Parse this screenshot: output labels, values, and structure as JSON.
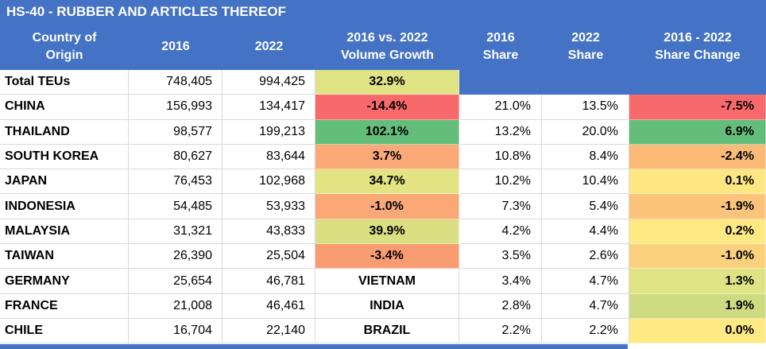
{
  "title": "HS-40 - RUBBER AND ARTICLES THEREOF",
  "colors": {
    "header_blue": "#4472C4",
    "grid_line": "#D9D9D9",
    "header_text": "#FFFFFF",
    "body_text": "#000000",
    "scale_red": "#F8696B",
    "scale_green": "#63BE7B",
    "scale_yellow": "#FEE984",
    "bottom_strip_blue": "#4472C4"
  },
  "header": {
    "cells": [
      {
        "line1": "Country of",
        "line2": "Origin"
      },
      {
        "line1": "2016",
        "line2": ""
      },
      {
        "line1": "2022",
        "line2": ""
      },
      {
        "line1": "2016 vs. 2022",
        "line2": "Volume Growth"
      },
      {
        "line1": "2016",
        "line2": "Share"
      },
      {
        "line1": "2022",
        "line2": "Share"
      },
      {
        "line1": "2016 - 2022",
        "line2": "Share Change"
      }
    ]
  },
  "rows": [
    {
      "country": "Total TEUs",
      "teu_2016": "748,405",
      "teu_2022": "994,425",
      "volume_growth": "32.9%",
      "volume_growth_bg": "#E0E383",
      "share_2016": "",
      "share_2022": "",
      "share_change": "",
      "share_cells_bg": "#4472C4",
      "share_change_bg": "#4472C4"
    },
    {
      "country": "CHINA",
      "teu_2016": "156,993",
      "teu_2022": "134,417",
      "volume_growth": "-14.4%",
      "volume_growth_bg": "#F8696B",
      "share_2016": "21.0%",
      "share_2022": "13.5%",
      "share_change": "-7.5%",
      "share_cells_bg": null,
      "share_change_bg": "#F8696B"
    },
    {
      "country": "THAILAND",
      "teu_2016": "98,577",
      "teu_2022": "199,213",
      "volume_growth": "102.1%",
      "volume_growth_bg": "#63BE7B",
      "share_2016": "13.2%",
      "share_2022": "20.0%",
      "share_change": "6.9%",
      "share_cells_bg": null,
      "share_change_bg": "#63BE7B"
    },
    {
      "country": "SOUTH KOREA",
      "teu_2016": "80,627",
      "teu_2022": "83,644",
      "volume_growth": "3.7%",
      "volume_growth_bg": "#FBA977",
      "share_2016": "10.8%",
      "share_2022": "8.4%",
      "share_change": "-2.4%",
      "share_cells_bg": null,
      "share_change_bg": "#FBBB76"
    },
    {
      "country": "JAPAN",
      "teu_2016": "76,453",
      "teu_2022": "102,968",
      "volume_growth": "34.7%",
      "volume_growth_bg": "#E2E483",
      "share_2016": "10.2%",
      "share_2022": "10.4%",
      "share_change": "0.1%",
      "share_cells_bg": null,
      "share_change_bg": "#FEE782"
    },
    {
      "country": "INDONESIA",
      "teu_2016": "54,485",
      "teu_2022": "53,933",
      "volume_growth": "-1.0%",
      "volume_growth_bg": "#FAA876",
      "share_2016": "7.3%",
      "share_2022": "5.4%",
      "share_change": "-1.9%",
      "share_cells_bg": null,
      "share_change_bg": "#FBC47A"
    },
    {
      "country": "MALAYSIA",
      "teu_2016": "31,321",
      "teu_2022": "43,833",
      "volume_growth": "39.9%",
      "volume_growth_bg": "#DAE082",
      "share_2016": "4.2%",
      "share_2022": "4.4%",
      "share_change": "0.2%",
      "share_cells_bg": null,
      "share_change_bg": "#FEE983"
    },
    {
      "country": "TAIWAN",
      "teu_2016": "26,390",
      "teu_2022": "25,504",
      "volume_growth": "-3.4%",
      "volume_growth_bg": "#F99C72",
      "share_2016": "3.5%",
      "share_2022": "2.6%",
      "share_change": "-1.0%",
      "share_cells_bg": null,
      "share_change_bg": "#FCD17D"
    },
    {
      "country": "GERMANY",
      "teu_2016": "25,654",
      "teu_2022": "46,781",
      "volume_growth": "VIETNAM",
      "volume_growth_bg": null,
      "share_2016": "3.4%",
      "share_2022": "4.7%",
      "share_change": "1.3%",
      "share_cells_bg": null,
      "share_change_bg": "#DFE383"
    },
    {
      "country": "FRANCE",
      "teu_2016": "21,008",
      "teu_2022": "46,461",
      "volume_growth": "INDIA",
      "volume_growth_bg": null,
      "share_2016": "2.8%",
      "share_2022": "4.7%",
      "share_change": "1.9%",
      "share_cells_bg": null,
      "share_change_bg": "#CEDB81"
    },
    {
      "country": "CHILE",
      "teu_2016": "16,704",
      "teu_2022": "22,140",
      "volume_growth": "BRAZIL",
      "volume_growth_bg": null,
      "share_2016": "2.2%",
      "share_2022": "2.2%",
      "share_change": "0.0%",
      "share_cells_bg": null,
      "share_change_bg": "#FEE984"
    }
  ],
  "chart_data": {
    "type": "table",
    "title": "HS-40 - RUBBER AND ARTICLES THEREOF",
    "columns": [
      "Country of Origin",
      "2016",
      "2022",
      "2016 vs. 2022 Volume Growth",
      "2016 Share",
      "2022 Share",
      "2016 - 2022 Share Change"
    ],
    "rows": [
      [
        "Total TEUs",
        748405,
        994425,
        "32.9%",
        null,
        null,
        null
      ],
      [
        "CHINA",
        156993,
        134417,
        "-14.4%",
        "21.0%",
        "13.5%",
        "-7.5%"
      ],
      [
        "THAILAND",
        98577,
        199213,
        "102.1%",
        "13.2%",
        "20.0%",
        "6.9%"
      ],
      [
        "SOUTH KOREA",
        80627,
        83644,
        "3.7%",
        "10.8%",
        "8.4%",
        "-2.4%"
      ],
      [
        "JAPAN",
        76453,
        102968,
        "34.7%",
        "10.2%",
        "10.4%",
        "0.1%"
      ],
      [
        "INDONESIA",
        54485,
        53933,
        "-1.0%",
        "7.3%",
        "5.4%",
        "-1.9%"
      ],
      [
        "MALAYSIA",
        31321,
        43833,
        "39.9%",
        "4.2%",
        "4.4%",
        "0.2%"
      ],
      [
        "TAIWAN",
        26390,
        25504,
        "-3.4%",
        "3.5%",
        "2.6%",
        "-1.0%"
      ],
      [
        "GERMANY",
        25654,
        46781,
        "VIETNAM",
        "3.4%",
        "4.7%",
        "1.3%"
      ],
      [
        "FRANCE",
        21008,
        46461,
        "INDIA",
        "2.8%",
        "4.7%",
        "1.9%"
      ],
      [
        "CHILE",
        16704,
        22140,
        "BRAZIL",
        "2.2%",
        "2.2%",
        "0.0%"
      ]
    ],
    "notes": "Excel-style table with 3-color conditional formatting (red = low/negative, yellow = mid, green = high) on Volume Growth and Share Change columns; Total TEUs row has blue header-colored blanks in the Share columns; GERMANY/FRANCE/CHILE rows show country names VIETNAM/INDIA/BRAZIL in the Volume Growth column."
  }
}
